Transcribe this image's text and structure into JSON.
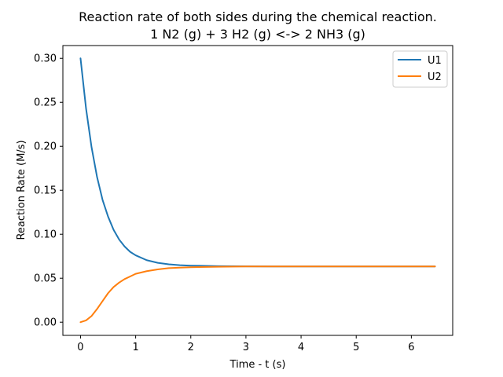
{
  "chart_data": {
    "type": "line",
    "title": "Reaction rate of both sides during the chemical reaction.",
    "subtitle": "1 N2 (g) + 3 H2 (g) <-> 2 NH3 (g)",
    "xlabel": "Time - t (s)",
    "ylabel": "Reaction Rate (M/s)",
    "xlim": [
      -0.32,
      6.75
    ],
    "ylim": [
      -0.015,
      0.3145
    ],
    "xticks": [
      0,
      1,
      2,
      3,
      4,
      5,
      6
    ],
    "xtick_labels": [
      "0",
      "1",
      "2",
      "3",
      "4",
      "5",
      "6"
    ],
    "yticks": [
      0.0,
      0.05,
      0.1,
      0.15,
      0.2,
      0.25,
      0.3
    ],
    "ytick_labels": [
      "0.00",
      "0.05",
      "0.10",
      "0.15",
      "0.20",
      "0.25",
      "0.30"
    ],
    "grid": false,
    "legend_position": "top-right",
    "x": [
      0,
      0.1,
      0.2,
      0.3,
      0.4,
      0.5,
      0.6,
      0.7,
      0.8,
      0.9,
      1.0,
      1.2,
      1.4,
      1.6,
      1.8,
      2.0,
      2.5,
      3.0,
      3.5,
      4.0,
      5.0,
      6.0,
      6.43
    ],
    "series": [
      {
        "name": "U1",
        "color": "#1f77b4",
        "values": [
          0.3,
          0.243,
          0.199,
          0.165,
          0.139,
          0.12,
          0.105,
          0.094,
          0.086,
          0.08,
          0.076,
          0.0705,
          0.0675,
          0.0658,
          0.0648,
          0.0643,
          0.0637,
          0.0635,
          0.0634,
          0.0634,
          0.0634,
          0.0634,
          0.0634
        ]
      },
      {
        "name": "U2",
        "color": "#ff7f0e",
        "values": [
          0.0,
          0.002,
          0.007,
          0.015,
          0.024,
          0.033,
          0.04,
          0.045,
          0.049,
          0.052,
          0.055,
          0.058,
          0.06,
          0.0615,
          0.062,
          0.0625,
          0.063,
          0.0633,
          0.0634,
          0.0634,
          0.0634,
          0.0634,
          0.0634
        ]
      }
    ]
  }
}
